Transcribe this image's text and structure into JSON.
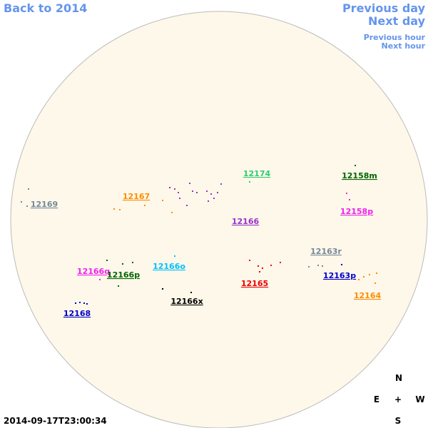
{
  "header": {
    "back": "Back to 2014",
    "previous_day": "Previous day",
    "next_day": "Next day",
    "previous_hour": "Previous hour",
    "next_hour": "Next hour"
  },
  "regions": [
    {
      "label": "12169",
      "color": "#778899"
    },
    {
      "label": "12167",
      "color": "#ff8c00"
    },
    {
      "label": "12174",
      "color": "#2ecc71"
    },
    {
      "label": "12158m",
      "color": "#006400"
    },
    {
      "label": "12166",
      "color": "#9932cc"
    },
    {
      "label": "12158p",
      "color": "#ee22ee"
    },
    {
      "label": "12163r",
      "color": "#778899"
    },
    {
      "label": "12166q",
      "color": "#ee22ee"
    },
    {
      "label": "12166o",
      "color": "#00bfff"
    },
    {
      "label": "12166p",
      "color": "#006400"
    },
    {
      "label": "12165",
      "color": "#ee0000"
    },
    {
      "label": "12163p",
      "color": "#0000cd"
    },
    {
      "label": "12164",
      "color": "#ff8c00"
    },
    {
      "label": "12168",
      "color": "#0000cd"
    },
    {
      "label": "12166x",
      "color": "#000000"
    }
  ],
  "compass": {
    "north": "N",
    "east": "E",
    "center": "+",
    "west": "W",
    "south": "S"
  },
  "timestamp": "2014-09-17T23:00:34"
}
